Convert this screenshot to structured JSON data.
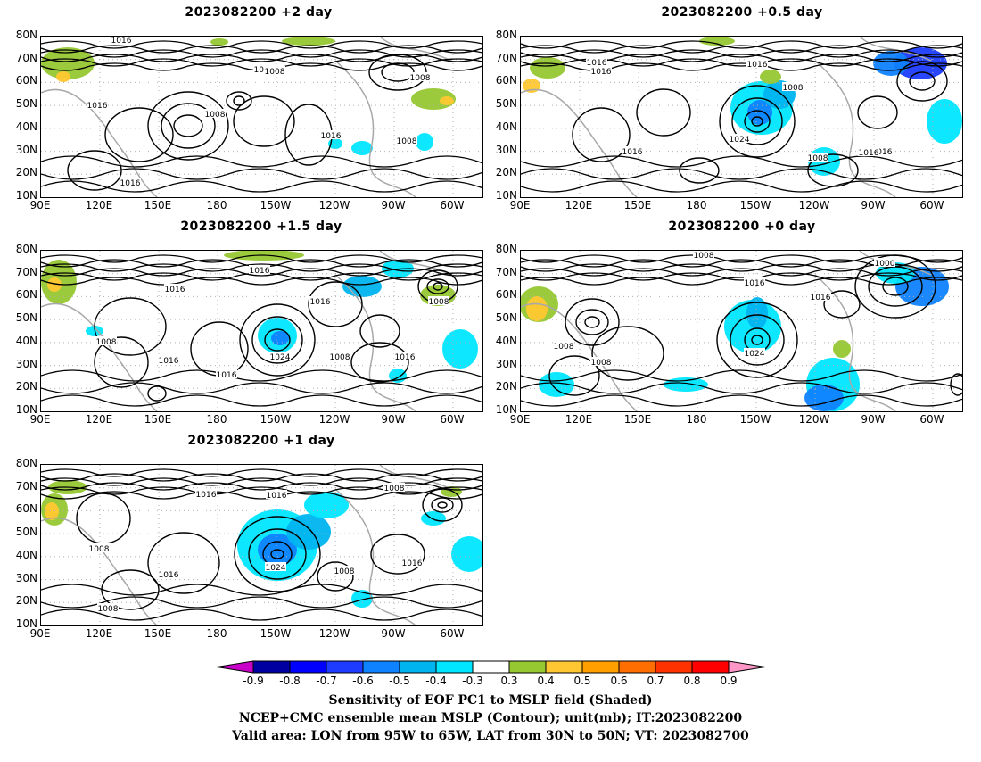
{
  "panels": [
    {
      "title": "2023082200 +2 day"
    },
    {
      "title": "2023082200 +0.5 day"
    },
    {
      "title": "2023082200 +1.5 day"
    },
    {
      "title": "2023082200 +0 day"
    },
    {
      "title": "2023082200 +1 day"
    }
  ],
  "map_axes": {
    "lat_labels": [
      "80N",
      "70N",
      "60N",
      "50N",
      "40N",
      "30N",
      "20N",
      "10N"
    ],
    "lon_labels": [
      "90E",
      "120E",
      "150E",
      "180",
      "150W",
      "120W",
      "90W",
      "60W"
    ]
  },
  "panel_contour_labels": [
    [
      "1016",
      "1016",
      "1016",
      "1008",
      "1008",
      "1016",
      "1008",
      "1016",
      "1008",
      "101"
    ],
    [
      "1016",
      "1008",
      "1016",
      "1016",
      "1024",
      "1016",
      "1016",
      "1008",
      "1016"
    ],
    [
      "1016",
      "1016",
      "1016",
      "1008",
      "1008",
      "1016",
      "1024",
      "1008",
      "1016",
      "1016"
    ],
    [
      "1008",
      "1000",
      "1016",
      "1016",
      "1008",
      "1008",
      "1024"
    ],
    [
      "1016",
      "1016",
      "1008",
      "1008",
      "1016",
      "1024",
      "1008",
      "1016",
      "1008"
    ]
  ],
  "colorbar": {
    "tick_labels": [
      "-0.9",
      "-0.8",
      "-0.7",
      "-0.6",
      "-0.5",
      "-0.4",
      "-0.3",
      "0.3",
      "0.4",
      "0.5",
      "0.6",
      "0.7",
      "0.8",
      "0.9"
    ],
    "colors": [
      "#c800c8",
      "#0000a0",
      "#0000ff",
      "#1e3cff",
      "#0f82ff",
      "#00b4f0",
      "#00e6ff",
      "#ffffff",
      "#96c832",
      "#ffc832",
      "#ffa000",
      "#ff6e00",
      "#ff3200",
      "#ff0000",
      "#ff96c8"
    ]
  },
  "captions": {
    "line1": "Sensitivity of EOF PC1 to MSLP field (Shaded)",
    "line2": "NCEP+CMC ensemble mean MSLP (Contour); unit(mb); IT:2023082200",
    "line3": "Valid area: LON from 95W to 65W, LAT from 30N to 50N; VT: 2023082700"
  }
}
